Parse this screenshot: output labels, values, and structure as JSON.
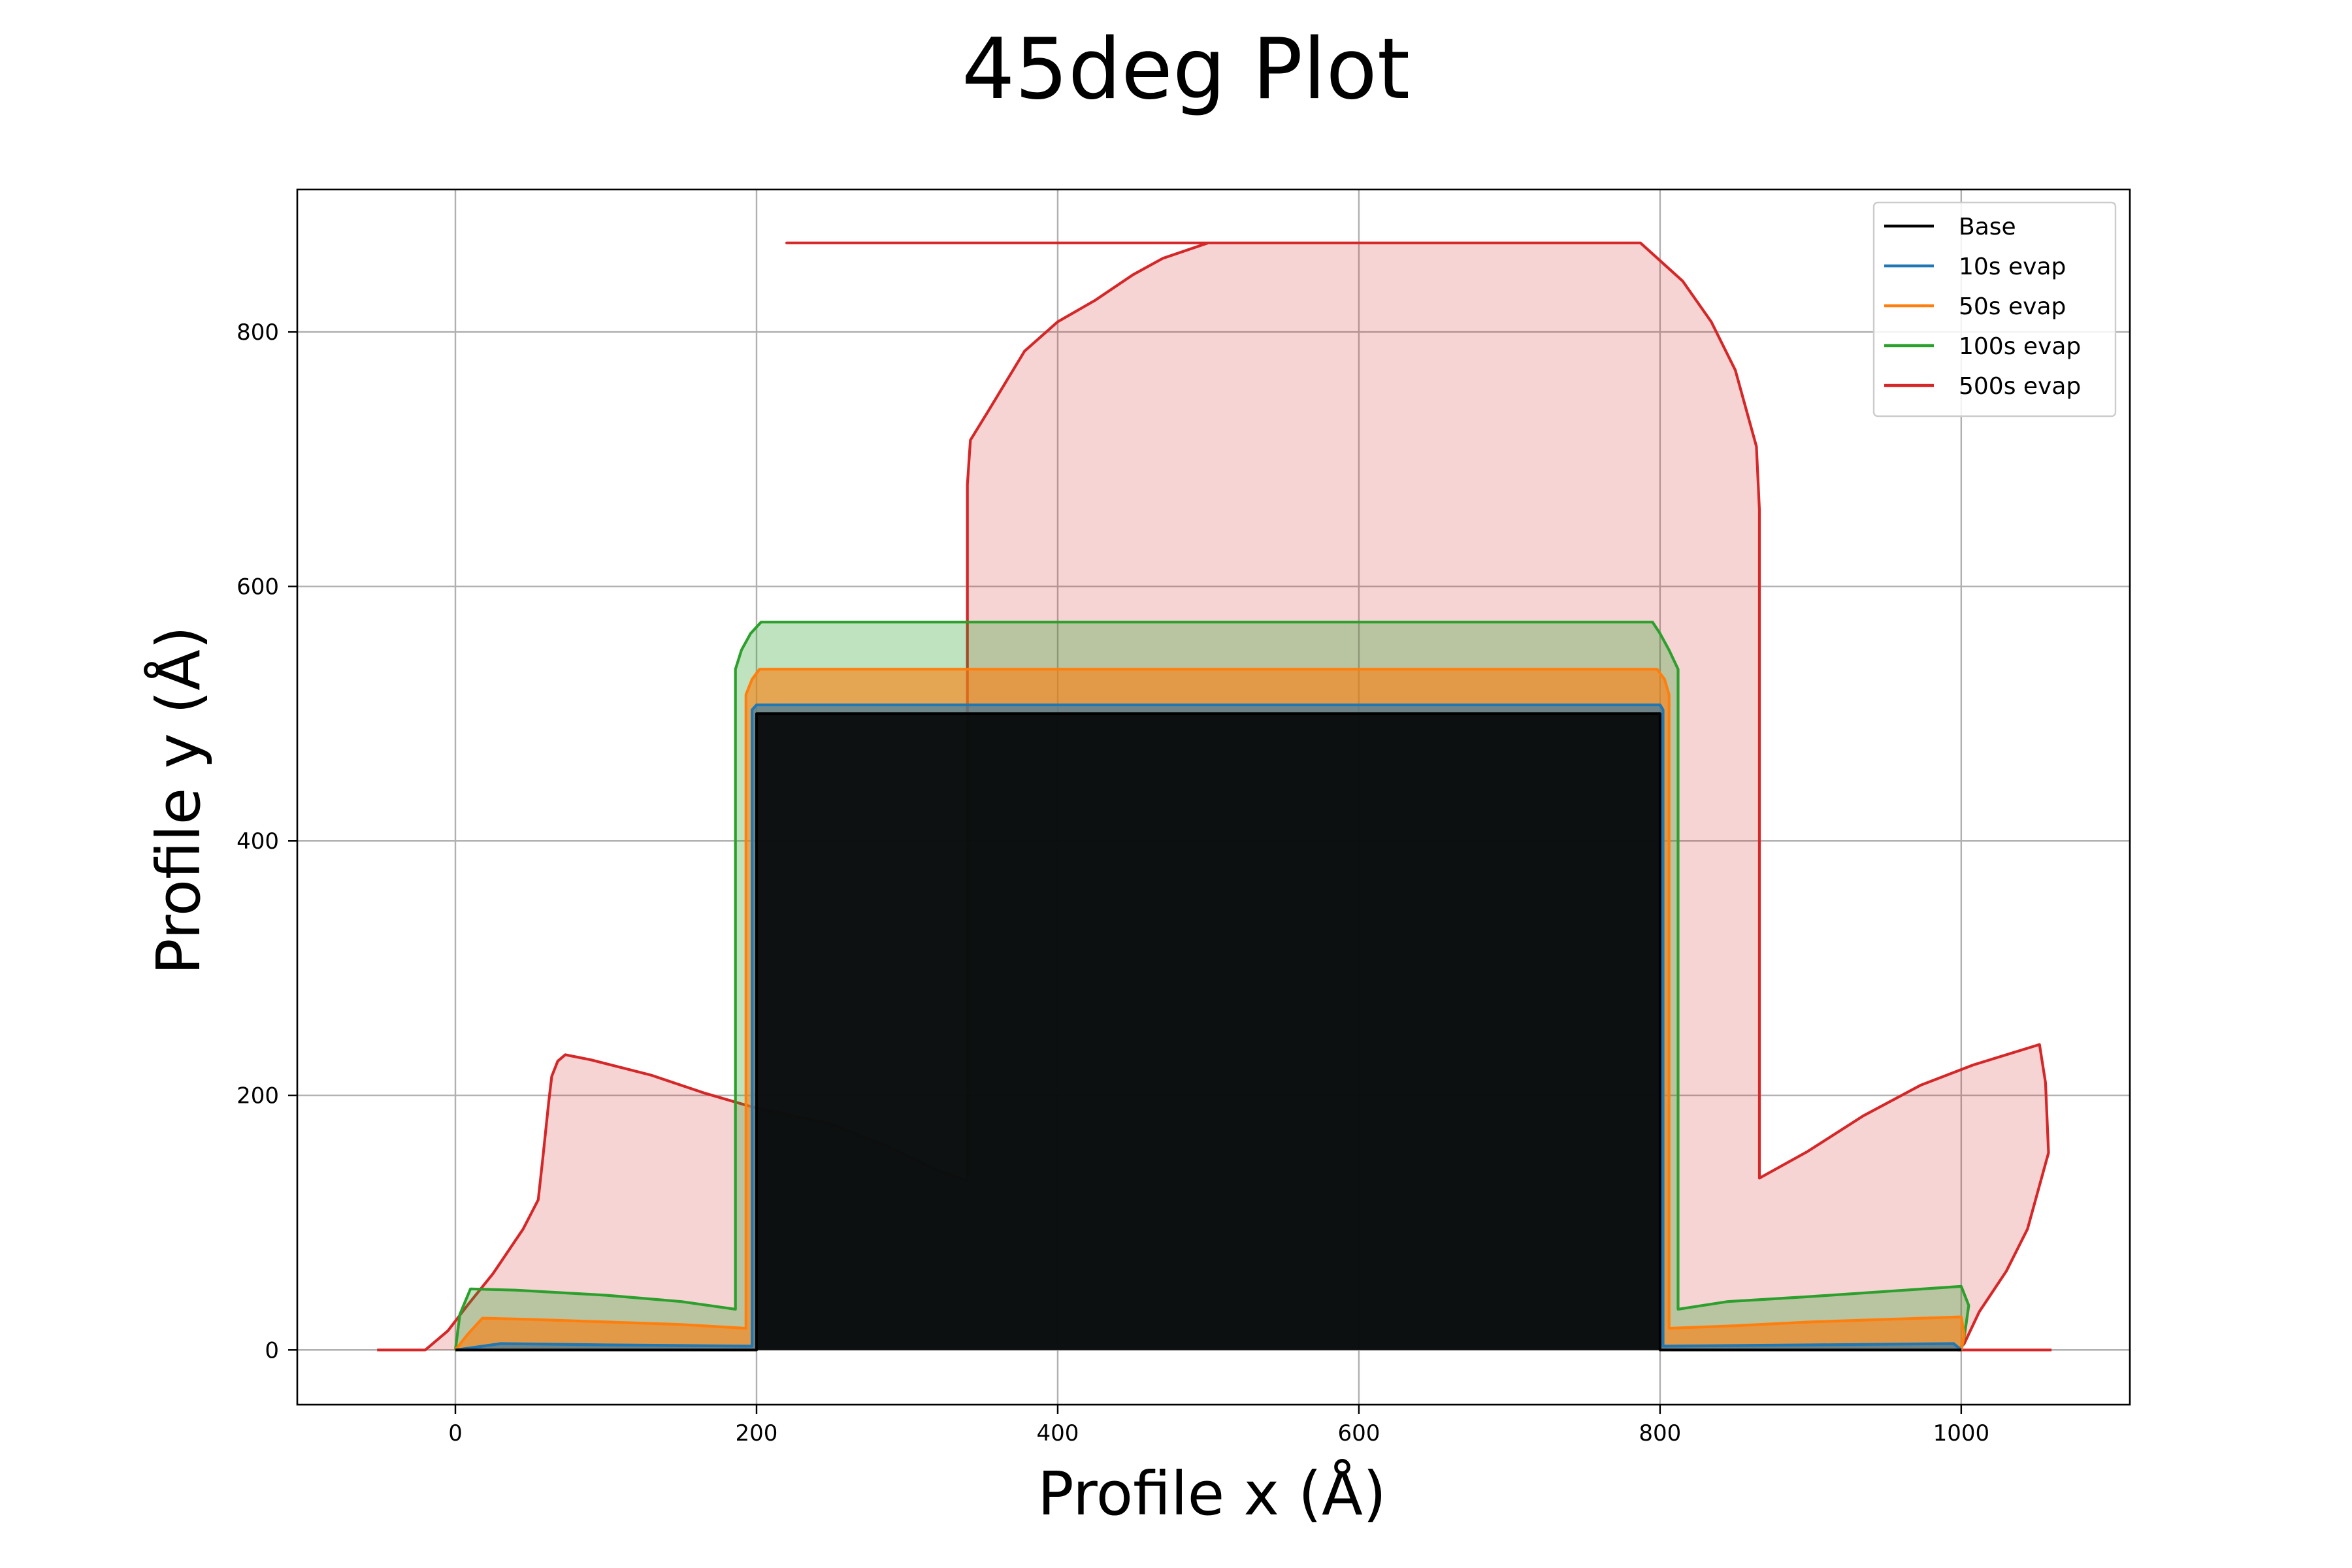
{
  "chart_data": {
    "type": "area",
    "title": "45deg Plot",
    "xlabel": "Profile x (Å)",
    "ylabel": "Profile y (Å)",
    "xlim": [
      -105,
      1112
    ],
    "ylim": [
      -43,
      912
    ],
    "xticks": [
      0,
      200,
      400,
      600,
      800,
      1000
    ],
    "yticks": [
      0,
      200,
      400,
      600,
      800
    ],
    "xtick_labels": [
      "0",
      "200",
      "400",
      "600",
      "800",
      "1000"
    ],
    "ytick_labels": [
      "0",
      "200",
      "400",
      "600",
      "800"
    ],
    "grid": true,
    "legend_position": "top-right",
    "series": [
      {
        "name": "500s evap",
        "color": "#d62728",
        "fill_opacity": 0.2,
        "points": [
          [
            -52,
            0
          ],
          [
            -20,
            0
          ],
          [
            -5,
            15
          ],
          [
            8,
            35
          ],
          [
            25,
            60
          ],
          [
            45,
            95
          ],
          [
            55,
            118
          ],
          [
            58,
            150
          ],
          [
            62,
            195
          ],
          [
            64,
            215
          ],
          [
            68,
            227
          ],
          [
            73,
            232
          ],
          [
            90,
            228
          ],
          [
            130,
            216
          ],
          [
            165,
            202
          ],
          [
            200,
            190
          ],
          [
            248,
            178
          ],
          [
            285,
            161
          ],
          [
            320,
            141
          ],
          [
            340,
            133
          ],
          [
            340,
            680
          ],
          [
            342,
            715
          ],
          [
            355,
            740
          ],
          [
            378,
            785
          ],
          [
            400,
            808
          ],
          [
            425,
            825
          ],
          [
            450,
            845
          ],
          [
            470,
            858
          ],
          [
            500,
            870
          ],
          [
            220,
            870
          ],
          [
            500,
            870
          ],
          [
            780,
            870
          ],
          [
            787,
            870
          ],
          [
            815,
            840
          ],
          [
            834,
            808
          ],
          [
            850,
            770
          ],
          [
            864,
            710
          ],
          [
            866,
            660
          ],
          [
            866,
            135
          ],
          [
            898,
            156
          ],
          [
            935,
            184
          ],
          [
            973,
            208
          ],
          [
            1008,
            224
          ],
          [
            1030,
            232
          ],
          [
            1052,
            240
          ],
          [
            1056,
            210
          ],
          [
            1058,
            155
          ],
          [
            1044,
            95
          ],
          [
            1030,
            62
          ],
          [
            1012,
            30
          ],
          [
            1002,
            5
          ],
          [
            998,
            0
          ],
          [
            1060,
            0
          ]
        ]
      },
      {
        "name": "100s evap",
        "color": "#2ca02c",
        "fill_opacity": 0.3,
        "points": [
          [
            0,
            0
          ],
          [
            3,
            28
          ],
          [
            10,
            48
          ],
          [
            40,
            47
          ],
          [
            100,
            43
          ],
          [
            150,
            38
          ],
          [
            186,
            32
          ],
          [
            186,
            535
          ],
          [
            190,
            550
          ],
          [
            196,
            563
          ],
          [
            203,
            572
          ],
          [
            400,
            572
          ],
          [
            600,
            572
          ],
          [
            795,
            572
          ],
          [
            800,
            563
          ],
          [
            806,
            550
          ],
          [
            812,
            535
          ],
          [
            812,
            32
          ],
          [
            845,
            38
          ],
          [
            900,
            42
          ],
          [
            950,
            46
          ],
          [
            1000,
            50
          ],
          [
            1005,
            35
          ],
          [
            1002,
            10
          ],
          [
            1000,
            0
          ]
        ]
      },
      {
        "name": "50s evap",
        "color": "#ff7f0e",
        "fill_opacity": 0.6,
        "points": [
          [
            0,
            0
          ],
          [
            8,
            12
          ],
          [
            18,
            25
          ],
          [
            50,
            24
          ],
          [
            100,
            22
          ],
          [
            150,
            20
          ],
          [
            193,
            17
          ],
          [
            193,
            515
          ],
          [
            197,
            527
          ],
          [
            202,
            535
          ],
          [
            400,
            535
          ],
          [
            600,
            535
          ],
          [
            798,
            535
          ],
          [
            803,
            527
          ],
          [
            806,
            515
          ],
          [
            806,
            17
          ],
          [
            850,
            19
          ],
          [
            900,
            22
          ],
          [
            950,
            24
          ],
          [
            1000,
            26
          ],
          [
            1002,
            12
          ],
          [
            1000,
            0
          ]
        ]
      },
      {
        "name": "10s evap",
        "color": "#1f77b4",
        "fill_opacity": 0.6,
        "points": [
          [
            0,
            0
          ],
          [
            30,
            5
          ],
          [
            100,
            4
          ],
          [
            197,
            3
          ],
          [
            197,
            503
          ],
          [
            200,
            507
          ],
          [
            400,
            507
          ],
          [
            600,
            507
          ],
          [
            800,
            507
          ],
          [
            802,
            503
          ],
          [
            802,
            3
          ],
          [
            900,
            4
          ],
          [
            995,
            5
          ],
          [
            1000,
            0
          ]
        ]
      },
      {
        "name": "Base",
        "color": "#000000",
        "fill_opacity": 0.88,
        "points": [
          [
            0,
            0
          ],
          [
            200,
            0
          ],
          [
            200,
            500
          ],
          [
            800,
            500
          ],
          [
            800,
            0
          ],
          [
            1000,
            0
          ]
        ]
      }
    ],
    "legend_order": [
      "Base",
      "10s evap",
      "50s evap",
      "100s evap",
      "500s evap"
    ]
  }
}
